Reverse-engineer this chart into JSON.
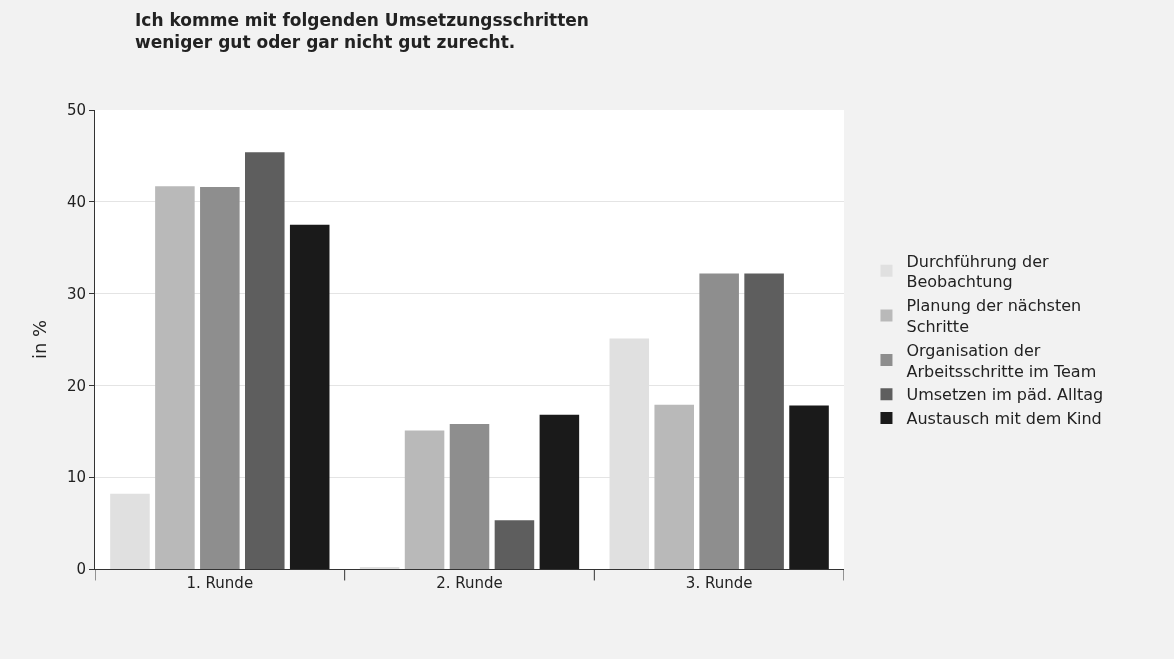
{
  "chart_data": {
    "type": "bar",
    "title": "Ich komme mit folgenden Umsetzungsschritten weniger gut oder gar nicht gut zurecht.",
    "ylabel": "in %",
    "categories": [
      "1. Runde",
      "2. Runde",
      "3. Runde"
    ],
    "series": [
      {
        "name": "Durchführung der Beobachtung",
        "color": "#e0e0e0",
        "values": [
          8.2,
          0.2,
          25.1
        ]
      },
      {
        "name": "Planung der nächsten Schritte",
        "color": "#b9b9b9",
        "values": [
          41.7,
          15.1,
          17.9
        ]
      },
      {
        "name": "Organisation der Arbeitsschritte im Team",
        "color": "#8e8e8e",
        "values": [
          41.6,
          15.8,
          32.2
        ]
      },
      {
        "name": "Umsetzen im päd. Alltag",
        "color": "#5e5e5e",
        "values": [
          45.4,
          5.3,
          32.2
        ]
      },
      {
        "name": "Austausch mit dem Kind",
        "color": "#1a1a1a",
        "values": [
          37.5,
          16.8,
          17.8
        ]
      }
    ],
    "ylim": [
      0,
      50
    ],
    "yticks": [
      0,
      10,
      20,
      30,
      40,
      50
    ],
    "grid": "y",
    "legend": "right"
  }
}
